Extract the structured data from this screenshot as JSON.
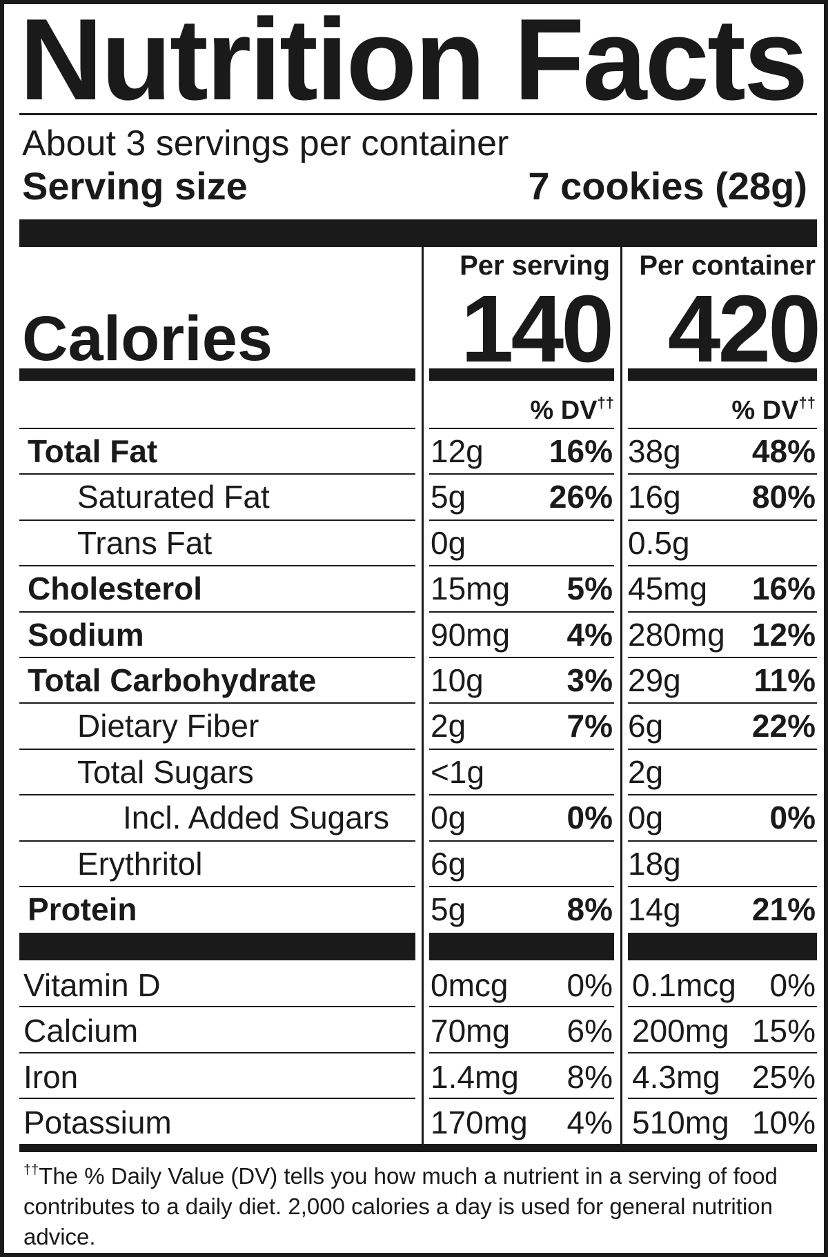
{
  "title": "Nutrition Facts",
  "servings_per_container": "About 3 servings per container",
  "serving_size_label": "Serving size",
  "serving_size_value": "7 cookies (28g)",
  "columns": {
    "per_serving": "Per serving",
    "per_container": "Per container"
  },
  "calories": {
    "label": "Calories",
    "per_serving": "140",
    "per_container": "420"
  },
  "dv_header": "% DV",
  "dv_mark": "††",
  "nutrients": [
    {
      "name": "Total Fat",
      "bold": true,
      "indent": 0,
      "serving_amount": "12g",
      "serving_dv": "16%",
      "container_amount": "38g",
      "container_dv": "48%"
    },
    {
      "name": "Saturated Fat",
      "bold": false,
      "indent": 1,
      "serving_amount": "5g",
      "serving_dv": "26%",
      "container_amount": "16g",
      "container_dv": "80%"
    },
    {
      "name": "Trans Fat",
      "bold": false,
      "indent": 1,
      "serving_amount": "0g",
      "serving_dv": "",
      "container_amount": "0.5g",
      "container_dv": ""
    },
    {
      "name": "Cholesterol",
      "bold": true,
      "indent": 0,
      "serving_amount": "15mg",
      "serving_dv": "5%",
      "container_amount": "45mg",
      "container_dv": "16%"
    },
    {
      "name": "Sodium",
      "bold": true,
      "indent": 0,
      "serving_amount": "90mg",
      "serving_dv": "4%",
      "container_amount": "280mg",
      "container_dv": "12%"
    },
    {
      "name": "Total Carbohydrate",
      "bold": true,
      "indent": 0,
      "serving_amount": "10g",
      "serving_dv": "3%",
      "container_amount": "29g",
      "container_dv": "11%"
    },
    {
      "name": "Dietary Fiber",
      "bold": false,
      "indent": 1,
      "serving_amount": "2g",
      "serving_dv": "7%",
      "container_amount": "6g",
      "container_dv": "22%"
    },
    {
      "name": "Total Sugars",
      "bold": false,
      "indent": 1,
      "serving_amount": "<1g",
      "serving_dv": "",
      "container_amount": "2g",
      "container_dv": ""
    },
    {
      "name": "Incl. Added Sugars",
      "bold": false,
      "indent": 2,
      "serving_amount": "0g",
      "serving_dv": "0%",
      "container_amount": "0g",
      "container_dv": "0%"
    },
    {
      "name": "Erythritol",
      "bold": false,
      "indent": 1,
      "serving_amount": "6g",
      "serving_dv": "",
      "container_amount": "18g",
      "container_dv": ""
    },
    {
      "name": "Protein",
      "bold": true,
      "indent": 0,
      "serving_amount": "5g",
      "serving_dv": "8%",
      "container_amount": "14g",
      "container_dv": "21%"
    }
  ],
  "vitamins": [
    {
      "name": "Vitamin D",
      "serving_amount": "0mcg",
      "serving_dv": "0%",
      "container_amount": "0.1mcg",
      "container_dv": "0%"
    },
    {
      "name": "Calcium",
      "serving_amount": "70mg",
      "serving_dv": "6%",
      "container_amount": "200mg",
      "container_dv": "15%"
    },
    {
      "name": "Iron",
      "serving_amount": "1.4mg",
      "serving_dv": "8%",
      "container_amount": "4.3mg",
      "container_dv": "25%"
    },
    {
      "name": "Potassium",
      "serving_amount": "170mg",
      "serving_dv": "4%",
      "container_amount": "510mg",
      "container_dv": "10%"
    }
  ],
  "footnote": {
    "mark": "††",
    "text": "The % Daily Value (DV) tells you how much a nutrient in a serving of food contributes to a daily diet. 2,000 calories a day is used for general nutrition advice."
  }
}
